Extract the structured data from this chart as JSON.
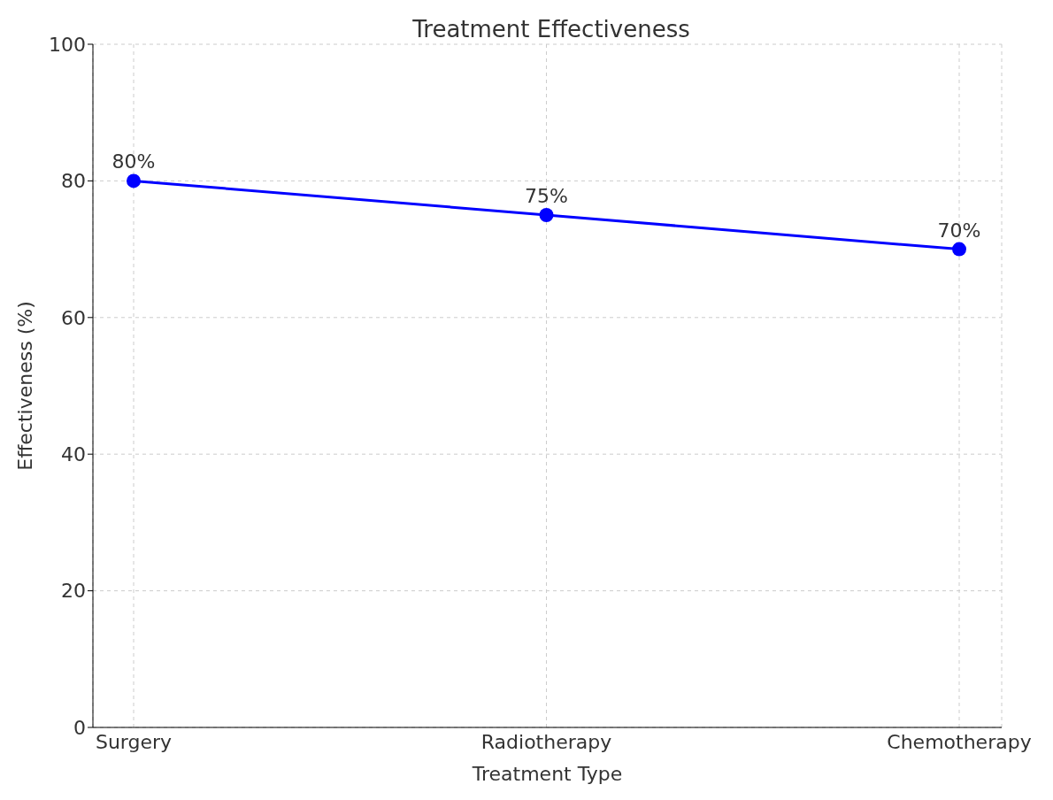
{
  "chart_data": {
    "type": "line",
    "title": "Treatment Effectiveness",
    "xlabel": "Treatment Type",
    "ylabel": "Effectiveness (%)",
    "categories": [
      "Surgery",
      "Radiotherapy",
      "Chemotherapy"
    ],
    "series": [
      {
        "color": "#0000ff",
        "values": [
          80,
          75,
          70
        ],
        "value_labels": [
          "80%",
          "75%",
          "70%"
        ]
      }
    ],
    "ylim": [
      0,
      100
    ],
    "yticks": [
      0,
      20,
      40,
      60,
      80,
      100
    ],
    "grid": true,
    "marker": "circle",
    "line_style": "solid"
  }
}
